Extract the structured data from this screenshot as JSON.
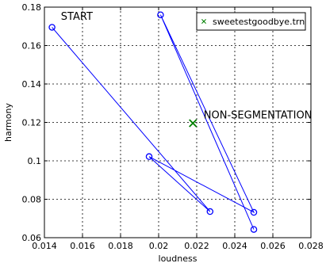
{
  "chart_data": {
    "type": "line",
    "xlabel": "loudness",
    "ylabel": "harmony",
    "xlim": [
      0.014,
      0.028
    ],
    "ylim": [
      0.06,
      0.18
    ],
    "xticks": [
      0.014,
      0.016,
      0.018,
      0.02,
      0.022,
      0.024,
      0.026,
      0.028
    ],
    "yticks": [
      0.06,
      0.08,
      0.1,
      0.12,
      0.14,
      0.16,
      0.18
    ],
    "xtick_labels": [
      "0.014",
      "0.016",
      "0.018",
      "0.02",
      "0.022",
      "0.024",
      "0.026",
      "0.028"
    ],
    "ytick_labels": [
      "0.06",
      "0.08",
      "0.1",
      "0.12",
      "0.14",
      "0.16",
      "0.18"
    ],
    "grid": true,
    "legend_position": "top-right",
    "path_color": "#0000ff",
    "marker_color": "#008000",
    "path": {
      "x": [
        0.0144,
        0.0227,
        0.0195,
        0.025,
        0.0201,
        0.025
      ],
      "y": [
        0.1695,
        0.0736,
        0.1022,
        0.0732,
        0.176,
        0.0643
      ]
    },
    "marker": {
      "name": "sweetestgoodbye.trn",
      "x": 0.0218,
      "y": 0.1196
    },
    "annotations": [
      {
        "text": "START",
        "x": 0.01445,
        "y": 0.1697
      },
      {
        "text": "NON-SEGMENTATION",
        "x": 0.02195,
        "y": 0.1195
      }
    ]
  }
}
